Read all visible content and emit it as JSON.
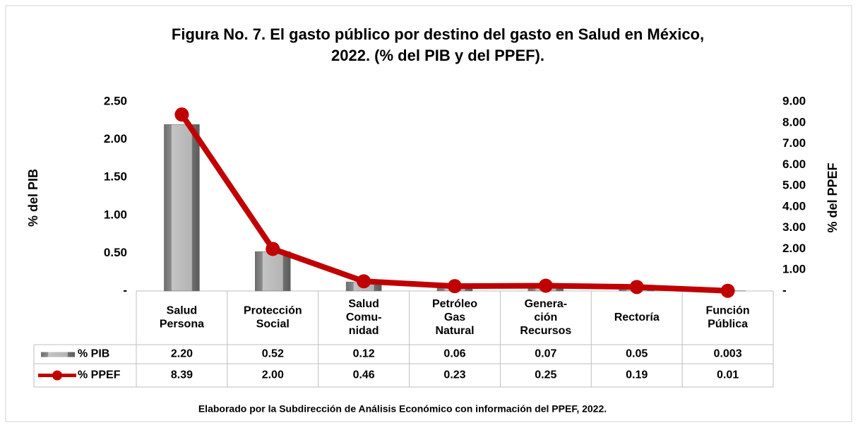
{
  "chart_data": {
    "type": "bar-line",
    "title": [
      "Figura No. 7. El gasto público por destino del gasto en Salud en México,",
      "2022. (% del PIB y del PPEF)."
    ],
    "categories": [
      "Salud\nPersona",
      "Protección\nSocial",
      "Salud\nComu-\nnidad",
      "Petróleo\nGas\nNatural",
      "Genera-\nción\nRecursos",
      "Rectoría",
      "Función\nPública"
    ],
    "series": [
      {
        "name": "% PIB",
        "type": "bar",
        "color": "#8c8c8c",
        "values": [
          2.2,
          0.52,
          0.12,
          0.06,
          0.07,
          0.05,
          0.003
        ],
        "value_labels": [
          "2.20",
          "0.52",
          "0.12",
          "0.06",
          "0.07",
          "0.05",
          "0.003"
        ]
      },
      {
        "name": "% PPEF",
        "type": "line",
        "axis": "y2",
        "color": "#c00000",
        "values": [
          8.39,
          2.0,
          0.46,
          0.23,
          0.25,
          0.19,
          0.01
        ],
        "value_labels": [
          "8.39",
          "2.00",
          "0.46",
          "0.23",
          "0.25",
          "0.19",
          "0.01"
        ]
      }
    ],
    "ylabel": "% del PIB",
    "y2label": "% del PPEF",
    "ylim": [
      0,
      2.5
    ],
    "yticks": [
      {
        "value": 0,
        "label": "-"
      },
      {
        "value": 0.5,
        "label": "0.50"
      },
      {
        "value": 1,
        "label": "1.00"
      },
      {
        "value": 1.5,
        "label": "1.50"
      },
      {
        "value": 2,
        "label": "2.00"
      },
      {
        "value": 2.5,
        "label": "2.50"
      }
    ],
    "y2lim": [
      0,
      9
    ],
    "y2ticks": [
      {
        "value": 0,
        "label": "-"
      },
      {
        "value": 1,
        "label": "1.00"
      },
      {
        "value": 2,
        "label": "2.00"
      },
      {
        "value": 3,
        "label": "3.00"
      },
      {
        "value": 4,
        "label": "4.00"
      },
      {
        "value": 5,
        "label": "5.00"
      },
      {
        "value": 6,
        "label": "6.00"
      },
      {
        "value": 7,
        "label": "7.00"
      },
      {
        "value": 8,
        "label": "8.00"
      },
      {
        "value": 9,
        "label": "9.00"
      }
    ],
    "note": "Elaborado por la Subdirección de Análisis Económico con información del PPEF, 2022."
  }
}
